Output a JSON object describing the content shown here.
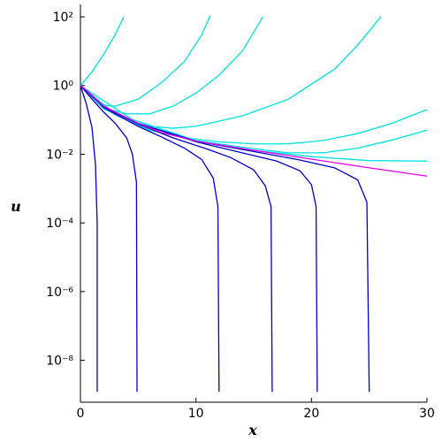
{
  "chart_data": {
    "type": "line",
    "log_y": true,
    "x_label": "x",
    "y_label": "u",
    "xlim": [
      0,
      30
    ],
    "xticks": [
      0,
      10,
      20,
      30
    ],
    "ylim": [
      6e-10,
      230
    ],
    "yticks": [
      {
        "value": 1e-08,
        "label": "10⁻⁸"
      },
      {
        "value": 1e-06,
        "label": "10⁻⁶"
      },
      {
        "value": 0.0001,
        "label": "10⁻⁴"
      },
      {
        "value": 0.01,
        "label": "10⁻²"
      },
      {
        "value": 1,
        "label": "10⁰"
      },
      {
        "value": 100,
        "label": "10²"
      }
    ],
    "series": [
      {
        "color": "#00e0e0",
        "x": [
          0,
          1,
          2,
          3,
          3.75
        ],
        "values": [
          1,
          2.5,
          8,
          30,
          100
        ]
      },
      {
        "color": "#00e0e0",
        "x": [
          0,
          1,
          2,
          3,
          5,
          7,
          9,
          10.5,
          11.25
        ],
        "values": [
          1,
          0.45,
          0.27,
          0.25,
          0.4,
          1.2,
          5,
          30,
          110
        ]
      },
      {
        "color": "#00e0e0",
        "x": [
          0,
          2,
          4,
          6,
          8,
          10,
          12,
          14,
          15.8
        ],
        "values": [
          1,
          0.22,
          0.15,
          0.15,
          0.25,
          0.6,
          2,
          10,
          100
        ]
      },
      {
        "color": "#00e0e0",
        "x": [
          0,
          2,
          4,
          6,
          8,
          10,
          14,
          18,
          22,
          24,
          26
        ],
        "values": [
          1,
          0.21,
          0.1,
          0.065,
          0.057,
          0.065,
          0.13,
          0.4,
          3,
          15,
          100
        ]
      },
      {
        "color": "#00e0e0",
        "x": [
          0,
          3,
          6,
          9,
          12,
          15,
          18,
          21,
          24,
          27,
          30
        ],
        "values": [
          1,
          0.14,
          0.05,
          0.03,
          0.023,
          0.02,
          0.02,
          0.025,
          0.04,
          0.08,
          0.2
        ]
      },
      {
        "color": "#00e0e0",
        "x": [
          0,
          3,
          6,
          10,
          14,
          18,
          21,
          24,
          27,
          30
        ],
        "values": [
          1,
          0.15,
          0.07,
          0.025,
          0.016,
          0.011,
          0.011,
          0.015,
          0.026,
          0.05
        ]
      },
      {
        "color": "#00e0e0",
        "x": [
          0,
          5,
          10,
          15,
          20,
          25,
          30
        ],
        "values": [
          1,
          0.079,
          0.024,
          0.013,
          0.0085,
          0.0065,
          0.0063
        ]
      },
      {
        "color": "#0000c8",
        "x": [
          0,
          0.5,
          1,
          1.3,
          1.45,
          1.45
        ],
        "values": [
          1,
          0.3,
          0.06,
          0.005,
          0.0001,
          1.2e-09
        ]
      },
      {
        "color": "#0000c8",
        "x": [
          0,
          1,
          2,
          3,
          4,
          4.5,
          4.85,
          4.9
        ],
        "values": [
          1,
          0.4,
          0.17,
          0.08,
          0.03,
          0.01,
          0.0015,
          1.2e-09
        ]
      },
      {
        "color": "#0000c8",
        "x": [
          0,
          1,
          2,
          3,
          5,
          7,
          9,
          10.5,
          11.5,
          11.9,
          12
        ],
        "values": [
          1,
          0.5,
          0.23,
          0.15,
          0.065,
          0.032,
          0.015,
          0.007,
          0.002,
          0.0003,
          1.2e-09
        ]
      },
      {
        "color": "#0000c8",
        "x": [
          0,
          2,
          5,
          8,
          11,
          13,
          15,
          16,
          16.5,
          16.6
        ],
        "values": [
          1,
          0.24,
          0.075,
          0.03,
          0.014,
          0.008,
          0.0035,
          0.0012,
          0.0003,
          1.2e-09
        ]
      },
      {
        "color": "#0000c8",
        "x": [
          0,
          2,
          5,
          10,
          14,
          17,
          19,
          20,
          20.4,
          20.5
        ],
        "values": [
          1,
          0.25,
          0.078,
          0.023,
          0.011,
          0.0063,
          0.0033,
          0.0013,
          0.0003,
          1.2e-09
        ]
      },
      {
        "color": "#0000c8",
        "x": [
          0,
          2,
          5,
          10,
          15,
          19,
          22,
          24,
          24.8,
          25
        ],
        "values": [
          1,
          0.25,
          0.079,
          0.024,
          0.012,
          0.0068,
          0.004,
          0.0018,
          0.0004,
          1.2e-09
        ]
      },
      {
        "color": "#e800e8",
        "x": [
          0,
          1,
          2,
          3,
          5,
          7,
          10,
          15,
          20,
          25,
          30
        ],
        "values": [
          1,
          0.52,
          0.25,
          0.17,
          0.079,
          0.043,
          0.024,
          0.013,
          0.0072,
          0.004,
          0.0023
        ]
      }
    ]
  }
}
